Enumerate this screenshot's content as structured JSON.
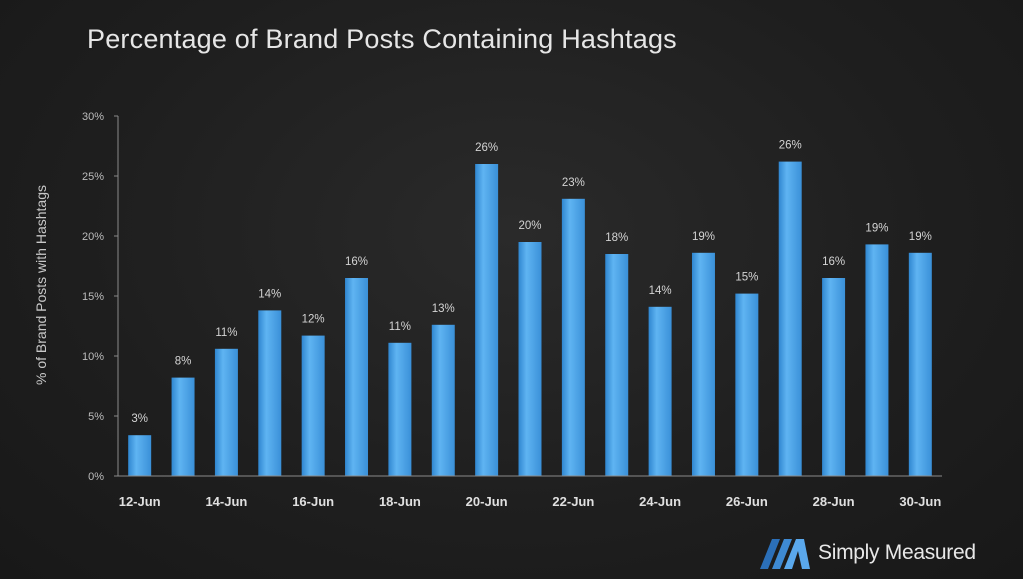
{
  "chart_data": {
    "type": "bar",
    "title": "Percentage of Brand Posts Containing Hashtags",
    "ylabel": "% of Brand Posts with Hashtags",
    "xlabel": "",
    "ylim": [
      0,
      30
    ],
    "yticks": [
      "0%",
      "5%",
      "10%",
      "15%",
      "20%",
      "25%",
      "30%"
    ],
    "x_tick_labels": [
      "12-Jun",
      "14-Jun",
      "16-Jun",
      "18-Jun",
      "20-Jun",
      "22-Jun",
      "24-Jun",
      "26-Jun",
      "28-Jun",
      "30-Jun"
    ],
    "categories": [
      "12-Jun",
      "13-Jun",
      "14-Jun",
      "15-Jun",
      "16-Jun",
      "17-Jun",
      "18-Jun",
      "19-Jun",
      "20-Jun",
      "21-Jun",
      "22-Jun",
      "23-Jun",
      "24-Jun",
      "25-Jun",
      "26-Jun",
      "27-Jun",
      "28-Jun",
      "29-Jun",
      "30-Jun"
    ],
    "values": [
      3.4,
      8.2,
      10.6,
      13.8,
      11.7,
      16.5,
      11.1,
      12.6,
      26.0,
      19.5,
      23.1,
      18.5,
      14.1,
      18.6,
      15.2,
      26.2,
      16.5,
      19.3,
      18.6
    ],
    "data_labels": [
      "3%",
      "8%",
      "11%",
      "14%",
      "12%",
      "16%",
      "11%",
      "13%",
      "26%",
      "20%",
      "23%",
      "18%",
      "14%",
      "19%",
      "15%",
      "26%",
      "16%",
      "19%",
      "19%"
    ],
    "bar_color": "#4aa3e8",
    "grid": false,
    "legend": "none"
  },
  "brand": {
    "name": "Simply Measured"
  }
}
